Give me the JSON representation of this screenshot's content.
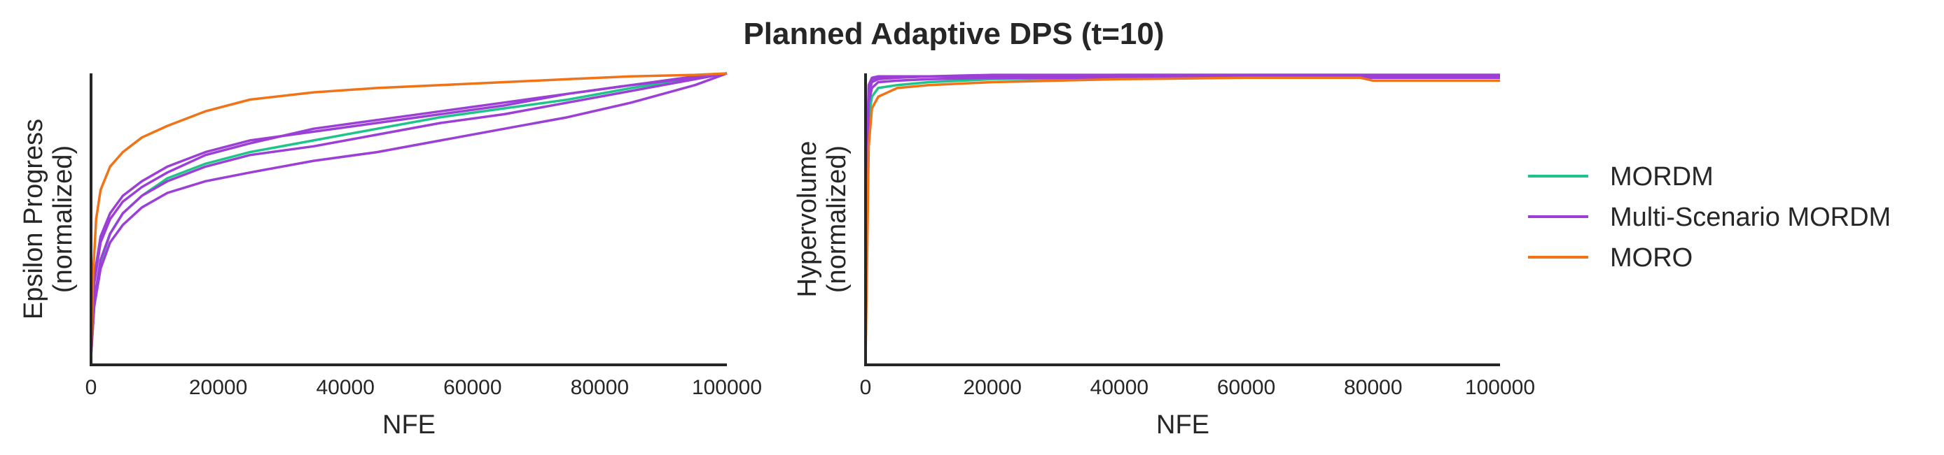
{
  "figure": {
    "title": "Planned Adaptive DPS (t=10)"
  },
  "legend": {
    "placement": "right",
    "entries": [
      {
        "label": "MORDM",
        "color": "#1fc48a"
      },
      {
        "label": "Multi-Scenario MORDM",
        "color": "#9b3fd6"
      },
      {
        "label": "MORO",
        "color": "#f07318"
      }
    ]
  },
  "chart_data": [
    {
      "type": "line",
      "xlabel": "NFE",
      "ylabel": [
        "Epsilon Progress",
        "(normalized)"
      ],
      "xlim": [
        0,
        100000
      ],
      "ylim": [
        0,
        1
      ],
      "xticks": [
        "0",
        "20000",
        "40000",
        "60000",
        "80000",
        "100000"
      ],
      "yticks": [],
      "grid": false,
      "series": [
        {
          "name": "MORDM",
          "color": "#1fc48a",
          "x": [
            0,
            500,
            1500,
            3000,
            5000,
            8000,
            12000,
            18000,
            25000,
            35000,
            45000,
            55000,
            65000,
            75000,
            85000,
            95000,
            100000
          ],
          "y": [
            0.03,
            0.2,
            0.35,
            0.45,
            0.52,
            0.58,
            0.64,
            0.69,
            0.73,
            0.77,
            0.81,
            0.85,
            0.88,
            0.91,
            0.95,
            0.985,
            1.0
          ]
        },
        {
          "name": "Multi-Scenario MORDM",
          "color": "#9b3fd6",
          "x": [
            0,
            500,
            1500,
            3000,
            5000,
            8000,
            12000,
            18000,
            25000,
            35000,
            45000,
            55000,
            65000,
            75000,
            85000,
            95000,
            100000
          ],
          "y": [
            0.05,
            0.28,
            0.42,
            0.5,
            0.56,
            0.61,
            0.66,
            0.72,
            0.76,
            0.81,
            0.84,
            0.87,
            0.9,
            0.93,
            0.96,
            0.99,
            1.0
          ]
        },
        {
          "name": "Multi-Scenario MORDM",
          "color": "#9b3fd6",
          "x": [
            0,
            500,
            1500,
            3000,
            5000,
            8000,
            12000,
            18000,
            25000,
            35000,
            45000,
            55000,
            65000,
            75000,
            85000,
            95000,
            100000
          ],
          "y": [
            0.04,
            0.3,
            0.44,
            0.52,
            0.58,
            0.63,
            0.68,
            0.73,
            0.77,
            0.8,
            0.83,
            0.86,
            0.89,
            0.93,
            0.96,
            0.985,
            1.0
          ]
        },
        {
          "name": "Multi-Scenario MORDM",
          "color": "#9b3fd6",
          "x": [
            0,
            500,
            1500,
            3000,
            5000,
            8000,
            12000,
            18000,
            25000,
            35000,
            45000,
            55000,
            65000,
            75000,
            85000,
            95000,
            100000
          ],
          "y": [
            0.04,
            0.22,
            0.36,
            0.45,
            0.52,
            0.58,
            0.63,
            0.68,
            0.72,
            0.75,
            0.79,
            0.83,
            0.86,
            0.9,
            0.94,
            0.98,
            1.0
          ]
        },
        {
          "name": "Multi-Scenario MORDM",
          "color": "#9b3fd6",
          "x": [
            0,
            500,
            1500,
            3000,
            5000,
            8000,
            12000,
            18000,
            25000,
            35000,
            45000,
            55000,
            65000,
            75000,
            85000,
            95000,
            100000
          ],
          "y": [
            0.03,
            0.2,
            0.33,
            0.42,
            0.48,
            0.54,
            0.59,
            0.63,
            0.66,
            0.7,
            0.73,
            0.77,
            0.81,
            0.85,
            0.9,
            0.96,
            1.0
          ]
        },
        {
          "name": "MORO",
          "color": "#f07318",
          "x": [
            0,
            300,
            800,
            1500,
            3000,
            5000,
            8000,
            12000,
            18000,
            25000,
            35000,
            45000,
            55000,
            65000,
            75000,
            85000,
            95000,
            100000
          ],
          "y": [
            0.02,
            0.3,
            0.5,
            0.6,
            0.68,
            0.73,
            0.78,
            0.82,
            0.87,
            0.91,
            0.935,
            0.95,
            0.96,
            0.97,
            0.98,
            0.99,
            0.995,
            1.0
          ]
        }
      ]
    },
    {
      "type": "line",
      "xlabel": "NFE",
      "ylabel": [
        "Hypervolume",
        "(normalized)"
      ],
      "xlim": [
        0,
        100000
      ],
      "ylim": [
        0,
        1
      ],
      "xticks": [
        "0",
        "20000",
        "40000",
        "60000",
        "80000",
        "100000"
      ],
      "yticks": [],
      "grid": false,
      "series": [
        {
          "name": "MORDM",
          "color": "#1fc48a",
          "x": [
            0,
            200,
            500,
            1000,
            2000,
            5000,
            10000,
            20000,
            40000,
            60000,
            80000,
            100000
          ],
          "y": [
            0.03,
            0.55,
            0.85,
            0.92,
            0.95,
            0.96,
            0.97,
            0.98,
            0.985,
            0.99,
            0.99,
            0.99
          ]
        },
        {
          "name": "Multi-Scenario MORDM",
          "color": "#9b3fd6",
          "x": [
            0,
            200,
            500,
            1000,
            2000,
            5000,
            10000,
            20000,
            40000,
            60000,
            80000,
            100000
          ],
          "y": [
            0.03,
            0.7,
            0.96,
            0.985,
            0.99,
            0.99,
            0.99,
            0.995,
            0.995,
            0.995,
            0.995,
            0.995
          ]
        },
        {
          "name": "Multi-Scenario MORDM",
          "color": "#9b3fd6",
          "x": [
            0,
            200,
            500,
            1000,
            2000,
            5000,
            10000,
            20000,
            40000,
            60000,
            80000,
            100000
          ],
          "y": [
            0.03,
            0.65,
            0.94,
            0.98,
            0.985,
            0.99,
            0.99,
            0.99,
            0.99,
            0.99,
            0.99,
            0.99
          ]
        },
        {
          "name": "Multi-Scenario MORDM",
          "color": "#9b3fd6",
          "x": [
            0,
            200,
            500,
            1000,
            2000,
            5000,
            10000,
            20000,
            40000,
            60000,
            80000,
            100000
          ],
          "y": [
            0.03,
            0.6,
            0.9,
            0.95,
            0.97,
            0.975,
            0.98,
            0.985,
            0.985,
            0.985,
            0.985,
            0.985
          ]
        },
        {
          "name": "Multi-Scenario MORDM",
          "color": "#9b3fd6",
          "x": [
            0,
            200,
            500,
            1000,
            2000,
            5000,
            10000,
            20000,
            40000,
            60000,
            80000,
            100000
          ],
          "y": [
            0.03,
            0.62,
            0.93,
            0.97,
            0.98,
            0.985,
            0.99,
            0.99,
            0.995,
            0.995,
            0.995,
            0.995
          ]
        },
        {
          "name": "MORO",
          "color": "#f07318",
          "x": [
            0,
            200,
            500,
            1000,
            2000,
            5000,
            10000,
            20000,
            40000,
            60000,
            78000,
            80000,
            100000
          ],
          "y": [
            0.02,
            0.3,
            0.75,
            0.88,
            0.92,
            0.95,
            0.96,
            0.97,
            0.98,
            0.985,
            0.985,
            0.975,
            0.975
          ]
        }
      ]
    }
  ]
}
